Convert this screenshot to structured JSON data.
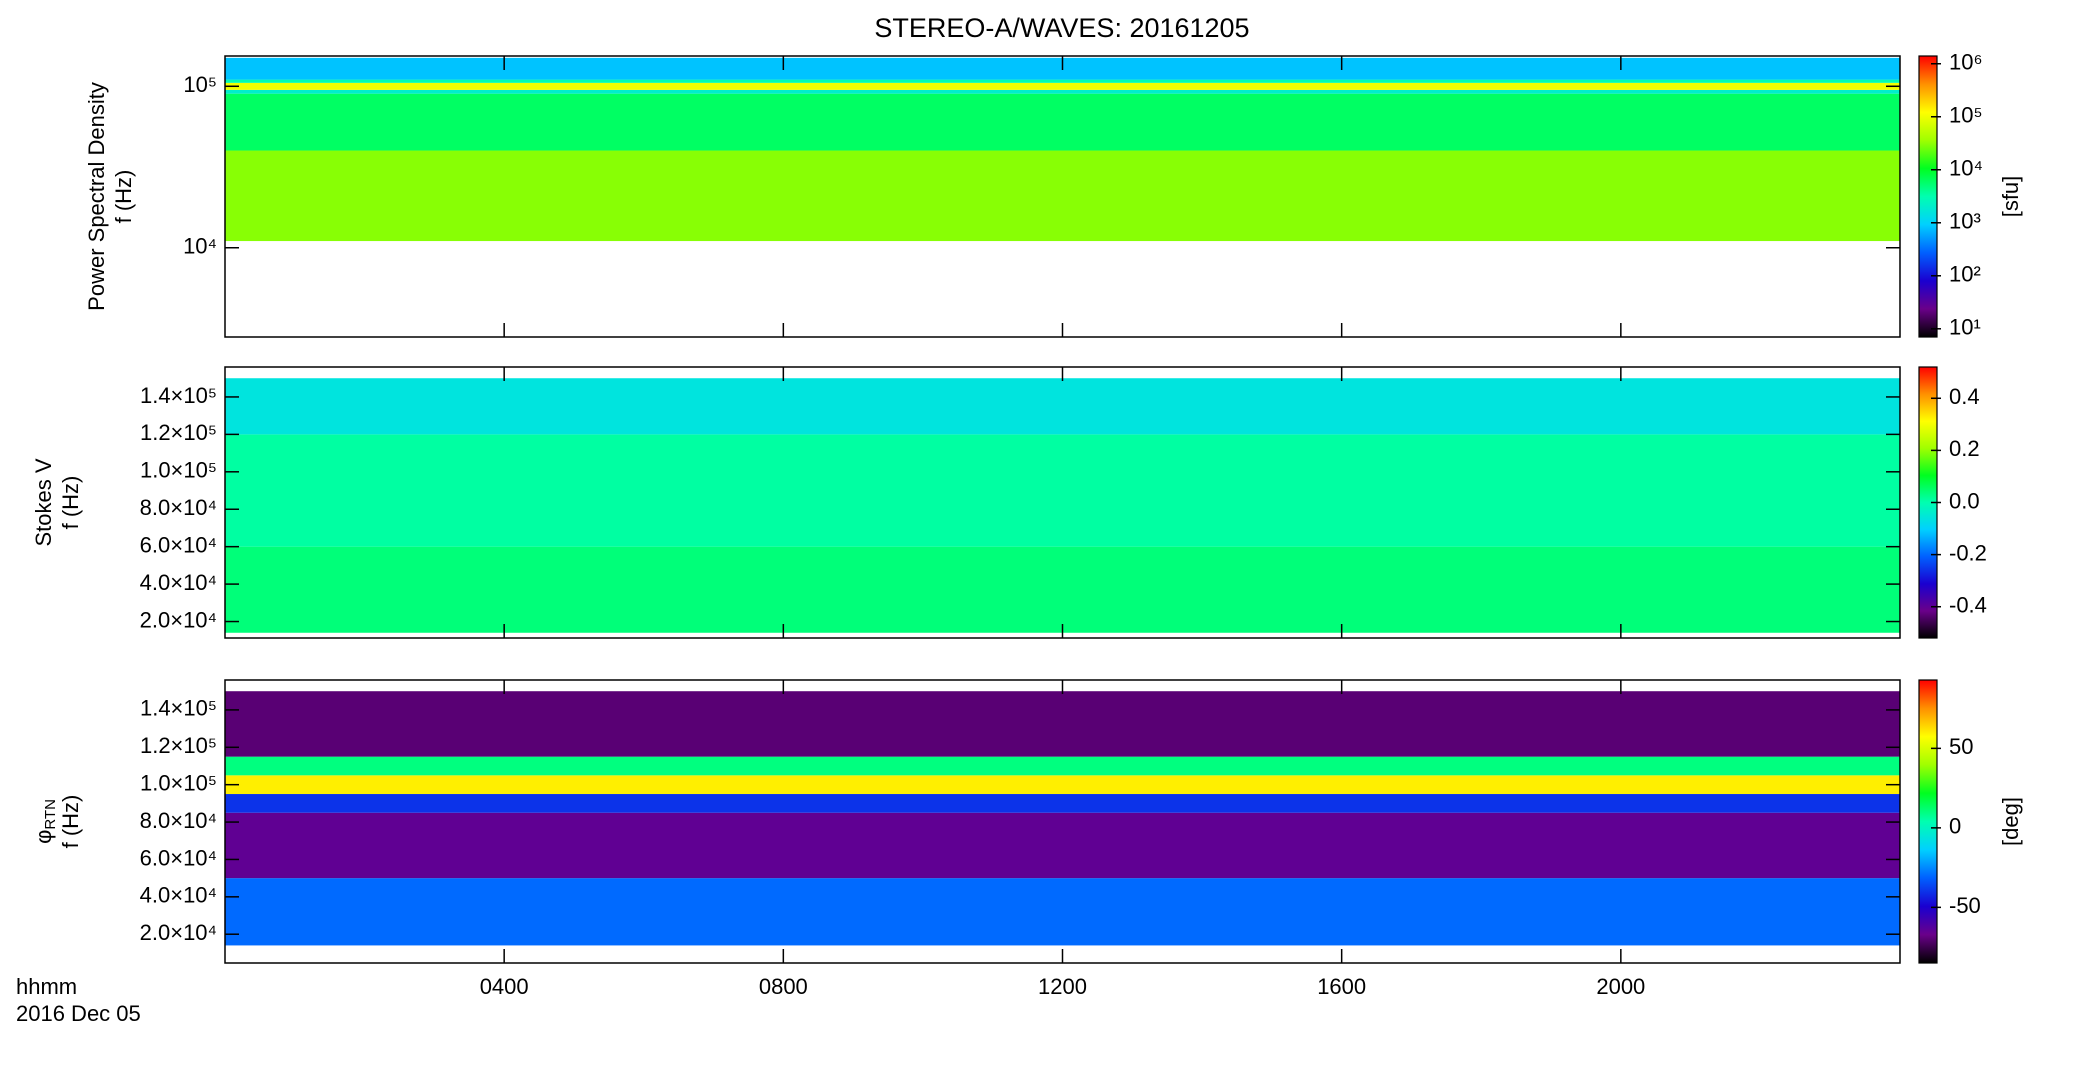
{
  "title": "STEREO-A/WAVES: 20161205",
  "x_axis": {
    "xlim": [
      0,
      24
    ],
    "xticks": [
      {
        "value": 4,
        "label": "0400"
      },
      {
        "value": 8,
        "label": "0800"
      },
      {
        "value": 12,
        "label": "1200"
      },
      {
        "value": 16,
        "label": "1600"
      },
      {
        "value": 20,
        "label": "2000"
      }
    ],
    "label": "hhmm",
    "date": "2016 Dec 05"
  },
  "colormap": [
    "#000000",
    "#6a008a",
    "#1a00d0",
    "#0060ff",
    "#00d0ff",
    "#00ffb0",
    "#00ff20",
    "#a0ff00",
    "#ffff00",
    "#ff9000",
    "#ff0000"
  ],
  "chart_data": [
    {
      "type": "spectrogram",
      "ylabel": [
        "Power Spectral Density",
        "f (Hz)"
      ],
      "ylog": true,
      "ylim": [
        2800,
        154000
      ],
      "yticks": [
        {
          "value": 10000,
          "label": "10⁴"
        },
        {
          "value": 100000,
          "label": "10⁵"
        }
      ],
      "y_edges": [
        11000,
        40000,
        90000,
        95000,
        105000,
        110000,
        150000
      ],
      "z": [
        30000,
        6000,
        2000,
        100000,
        3000,
        800
      ],
      "clog": true,
      "clim": [
        7,
        1400000
      ],
      "cticks": [
        {
          "value": 10,
          "label": "10¹"
        },
        {
          "value": 100,
          "label": "10²"
        },
        {
          "value": 1000,
          "label": "10³"
        },
        {
          "value": 10000,
          "label": "10⁴"
        },
        {
          "value": 100000,
          "label": "10⁵"
        },
        {
          "value": 1000000,
          "label": "10⁶"
        }
      ],
      "cbar_label": "[sfu]"
    },
    {
      "type": "spectrogram",
      "ylabel": [
        "Stokes V",
        "f (Hz)"
      ],
      "ylog": false,
      "ylim": [
        11200,
        156000
      ],
      "yticks": [
        {
          "value": 20000,
          "label": "2.0×10⁴"
        },
        {
          "value": 40000,
          "label": "4.0×10⁴"
        },
        {
          "value": 60000,
          "label": "6.0×10⁴"
        },
        {
          "value": 80000,
          "label": "8.0×10⁴"
        },
        {
          "value": 100000,
          "label": "1.0×10⁵"
        },
        {
          "value": 120000,
          "label": "1.2×10⁵"
        },
        {
          "value": 140000,
          "label": "1.4×10⁵"
        }
      ],
      "y_edges": [
        14000,
        60000,
        120000,
        150000
      ],
      "z": [
        0.04,
        0.01,
        -0.06
      ],
      "clog": false,
      "clim": [
        -0.52,
        0.52
      ],
      "cticks": [
        -0.4,
        -0.2,
        {
          "value": 0,
          "label": "0.0"
        },
        0.2,
        0.4
      ]
    },
    {
      "type": "spectrogram",
      "ylabel": [
        "φ",
        "RTN",
        "f (Hz)"
      ],
      "ylog": false,
      "ylim": [
        4600,
        156000
      ],
      "yticks": [
        {
          "value": 20000,
          "label": "2.0×10⁴"
        },
        {
          "value": 40000,
          "label": "4.0×10⁴"
        },
        {
          "value": 60000,
          "label": "6.0×10⁴"
        },
        {
          "value": 80000,
          "label": "8.0×10⁴"
        },
        {
          "value": 100000,
          "label": "1.0×10⁵"
        },
        {
          "value": 120000,
          "label": "1.2×10⁵"
        },
        {
          "value": 140000,
          "label": "1.4×10⁵"
        }
      ],
      "y_edges": [
        14000,
        50000,
        85000,
        95000,
        105000,
        115000,
        150000
      ],
      "z": [
        -30,
        -65,
        -40,
        60,
        10,
        -70
      ],
      "clog": false,
      "clim": [
        -85,
        93
      ],
      "cticks": [
        -50,
        0,
        50
      ],
      "cbar_label": "[deg]"
    }
  ]
}
